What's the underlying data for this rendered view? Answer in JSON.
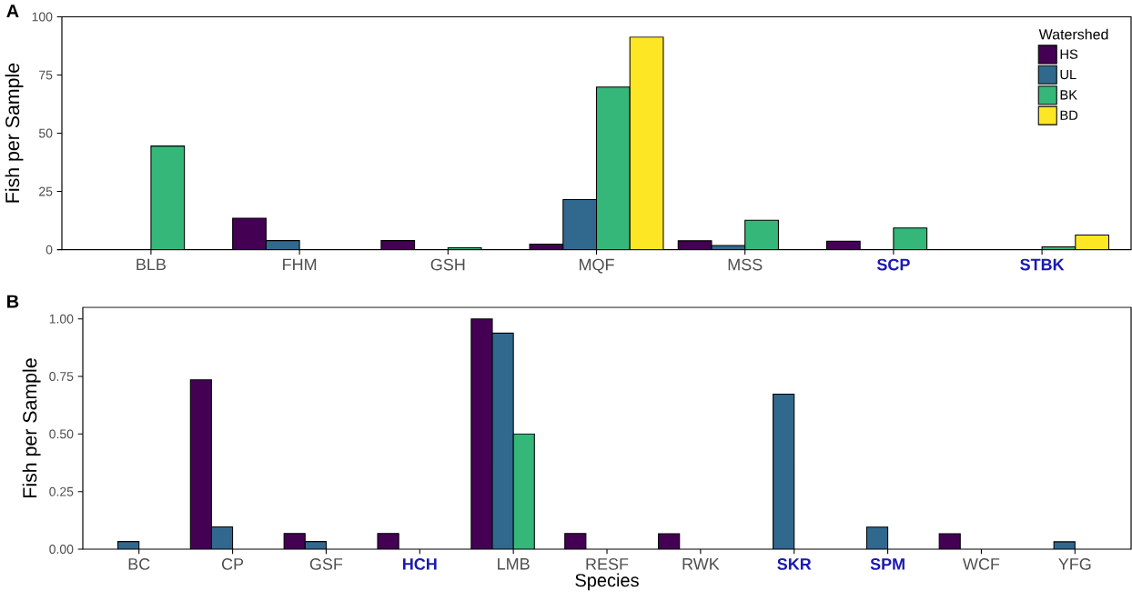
{
  "chart_data": [
    {
      "type": "bar",
      "annotations": [
        "A"
      ],
      "ylabel": "Fish per Sample",
      "legend_title": "Watershed",
      "legend": "top right",
      "categories": [
        "BLB",
        "FHM",
        "GSH",
        "MQF",
        "MSS",
        "SCP",
        "STBK"
      ],
      "ylim": [
        0,
        100
      ],
      "yticks": [
        0,
        25,
        50,
        75,
        100
      ],
      "series": [
        {
          "name": "HS",
          "color": "#440154",
          "values": [
            0,
            13.5,
            3.9,
            2.4,
            3.8,
            3.6,
            0
          ]
        },
        {
          "name": "UL",
          "color": "#31688e",
          "values": [
            0,
            3.9,
            0,
            21.5,
            1.8,
            null,
            0
          ]
        },
        {
          "name": "BK",
          "color": "#35b779",
          "values": [
            44.5,
            null,
            0.8,
            69.8,
            12.6,
            9.3,
            1.2
          ]
        },
        {
          "name": "BD",
          "color": "#fde725",
          "values": [
            null,
            null,
            null,
            91.3,
            null,
            null,
            6.3
          ]
        }
      ]
    },
    {
      "type": "bar",
      "annotations": [
        "B"
      ],
      "ylabel": "Fish per Sample",
      "xlabel": "Species",
      "categories": [
        "BC",
        "CP",
        "GSF",
        "HCH",
        "LMB",
        "RESF",
        "RWK",
        "SKR",
        "SPM",
        "WCF",
        "YFG"
      ],
      "ylim": [
        0,
        1.05
      ],
      "yticks": [
        {
          "value": 0,
          "label": "0.00"
        },
        {
          "value": 0.25,
          "label": "0.25"
        },
        {
          "value": 0.5,
          "label": "0.50"
        },
        {
          "value": 0.75,
          "label": "0.75"
        },
        {
          "value": 1,
          "label": "1.00"
        }
      ],
      "series": [
        {
          "color": "#440154",
          "values": [
            null,
            0.735,
            0.068,
            0.068,
            1.0,
            0.068,
            0.067,
            null,
            null,
            0.067,
            null
          ]
        },
        {
          "color": "#31688e",
          "values": [
            0.033,
            0.097,
            0.033,
            null,
            0.938,
            null,
            null,
            0.673,
            0.096,
            null,
            0.032
          ]
        },
        {
          "color": "#35b779",
          "values": [
            null,
            null,
            null,
            null,
            0.5,
            null,
            null,
            null,
            null,
            null,
            null
          ]
        },
        {
          "color": "#fde725",
          "values": [
            null,
            null,
            null,
            null,
            null,
            null,
            null,
            null,
            null,
            null,
            null
          ]
        }
      ]
    }
  ]
}
